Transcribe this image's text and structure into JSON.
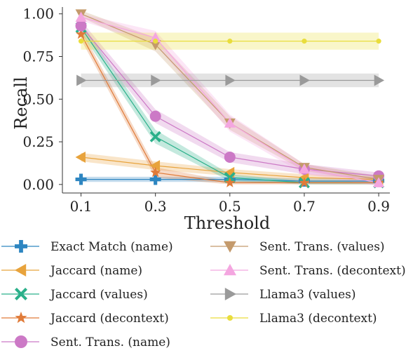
{
  "chart_data": {
    "type": "line",
    "xlabel": "Threshold",
    "ylabel": "Recall",
    "x": [
      0.1,
      0.3,
      0.5,
      0.7,
      0.9
    ],
    "x_tick_labels": [
      "0.1",
      "0.3",
      "0.5",
      "0.7",
      "0.9"
    ],
    "y_ticks": [
      0.0,
      0.25,
      0.5,
      0.75,
      1.0
    ],
    "y_tick_labels": [
      "0.00",
      "0.25",
      "0.50",
      "0.75",
      "1.00"
    ],
    "xlim": [
      0.05,
      0.93
    ],
    "ylim": [
      -0.05,
      1.04
    ],
    "grid": false,
    "legend_position": "below",
    "series": [
      {
        "name": "Exact Match (name)",
        "color": "#2e86c1",
        "marker": "plus",
        "values": [
          0.03,
          0.03,
          0.03,
          0.02,
          0.02
        ],
        "band": [
          0.015,
          0.015,
          0.015,
          0.015,
          0.015
        ]
      },
      {
        "name": "Jaccard (name)",
        "color": "#e8a33c",
        "marker": "triangle-left",
        "values": [
          0.16,
          0.11,
          0.07,
          0.04,
          0.03
        ],
        "band": [
          0.025,
          0.025,
          0.02,
          0.02,
          0.015
        ]
      },
      {
        "name": "Jaccard (values)",
        "color": "#2ab08a",
        "marker": "x",
        "values": [
          0.92,
          0.28,
          0.04,
          0.01,
          0.01
        ],
        "band": [
          0.03,
          0.04,
          0.02,
          0.01,
          0.01
        ]
      },
      {
        "name": "Jaccard (decontext)",
        "color": "#e07b39",
        "marker": "star",
        "values": [
          0.88,
          0.07,
          0.01,
          0.01,
          0.01
        ],
        "band": [
          0.03,
          0.03,
          0.01,
          0.01,
          0.01
        ]
      },
      {
        "name": "Sent. Trans. (name)",
        "color": "#cc79c6",
        "marker": "circle",
        "values": [
          0.93,
          0.4,
          0.16,
          0.09,
          0.05
        ],
        "band": [
          0.03,
          0.04,
          0.03,
          0.03,
          0.02
        ]
      },
      {
        "name": "Sent. Trans. (values)",
        "color": "#c49a6c",
        "marker": "triangle-down",
        "values": [
          1.0,
          0.82,
          0.36,
          0.1,
          0.03
        ],
        "band": [
          0.02,
          0.04,
          0.04,
          0.02,
          0.02
        ]
      },
      {
        "name": "Sent. Trans. (decontext)",
        "color": "#f4a6e0",
        "marker": "triangle-up",
        "values": [
          0.98,
          0.86,
          0.36,
          0.09,
          0.01
        ],
        "band": [
          0.02,
          0.04,
          0.05,
          0.03,
          0.02
        ]
      },
      {
        "name": "Llama3 (values)",
        "color": "#9a9a9a",
        "marker": "triangle-right",
        "values": [
          0.61,
          0.61,
          0.61,
          0.61,
          0.61
        ],
        "band": [
          0.04,
          0.04,
          0.04,
          0.04,
          0.04
        ]
      },
      {
        "name": "Llama3 (decontext)",
        "color": "#e9dd3c",
        "marker": "dot",
        "values": [
          0.84,
          0.84,
          0.84,
          0.84,
          0.84
        ],
        "band": [
          0.05,
          0.05,
          0.05,
          0.05,
          0.05
        ]
      }
    ]
  }
}
